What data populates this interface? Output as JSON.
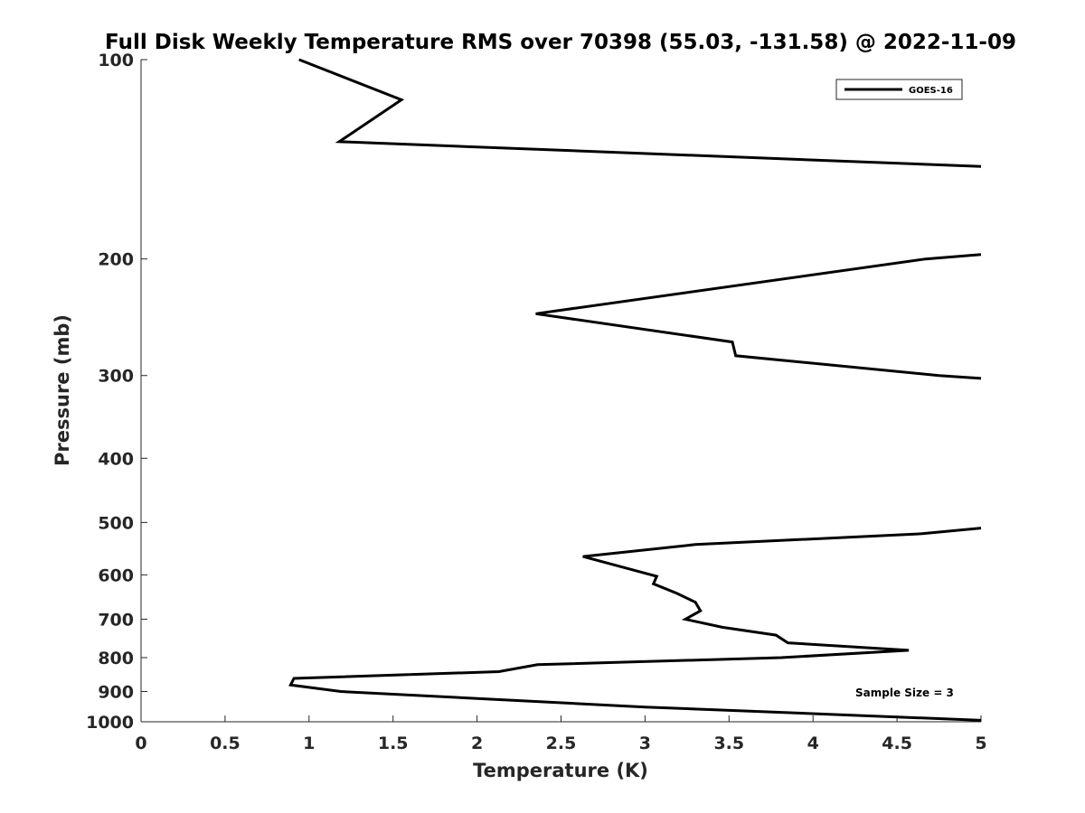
{
  "chart_data": {
    "type": "line",
    "title": "Full Disk Weekly Temperature RMS over 70398 (55.03, -131.58) @ 2022-11-09",
    "xlabel": "Temperature (K)",
    "ylabel": "Pressure (mb)",
    "xlim": [
      0,
      5
    ],
    "ylim": [
      100,
      1000
    ],
    "y_scale": "log",
    "y_reversed": true,
    "x_ticks": [
      "0",
      "0.5",
      "1",
      "1.5",
      "2",
      "2.5",
      "3",
      "3.5",
      "4",
      "4.5",
      "5"
    ],
    "y_ticks": [
      "100",
      "200",
      "300",
      "400",
      "500",
      "600",
      "700",
      "800",
      "900",
      "1000"
    ],
    "grid": false,
    "legend_position": "top-right",
    "annotation": "Sample Size = 3",
    "series": [
      {
        "name": "GOES-16",
        "color": "#000000",
        "segments": [
          [
            [
              0.94,
              100
            ],
            [
              1.55,
              115
            ],
            [
              1.18,
              133
            ],
            [
              5.0,
              145
            ]
          ],
          [
            [
              5.0,
              197
            ],
            [
              4.67,
              200
            ],
            [
              2.35,
              242
            ],
            [
              3.52,
              267
            ],
            [
              3.54,
              280
            ],
            [
              4.75,
              300
            ],
            [
              5.0,
              303
            ]
          ],
          [
            [
              5.0,
              510
            ],
            [
              4.65,
              520
            ],
            [
              3.3,
              540
            ],
            [
              2.63,
              563
            ],
            [
              3.07,
              603
            ],
            [
              3.05,
              619
            ],
            [
              3.19,
              640
            ],
            [
              3.3,
              660
            ],
            [
              3.33,
              680
            ],
            [
              3.24,
              700
            ],
            [
              3.46,
              720
            ],
            [
              3.78,
              740
            ],
            [
              3.85,
              760
            ],
            [
              4.57,
              780
            ],
            [
              3.81,
              800
            ],
            [
              2.36,
              820
            ],
            [
              2.13,
              840
            ],
            [
              0.91,
              860
            ],
            [
              0.89,
              880
            ],
            [
              1.19,
              900
            ],
            [
              3.0,
              950
            ],
            [
              5.0,
              995
            ]
          ]
        ]
      }
    ]
  }
}
